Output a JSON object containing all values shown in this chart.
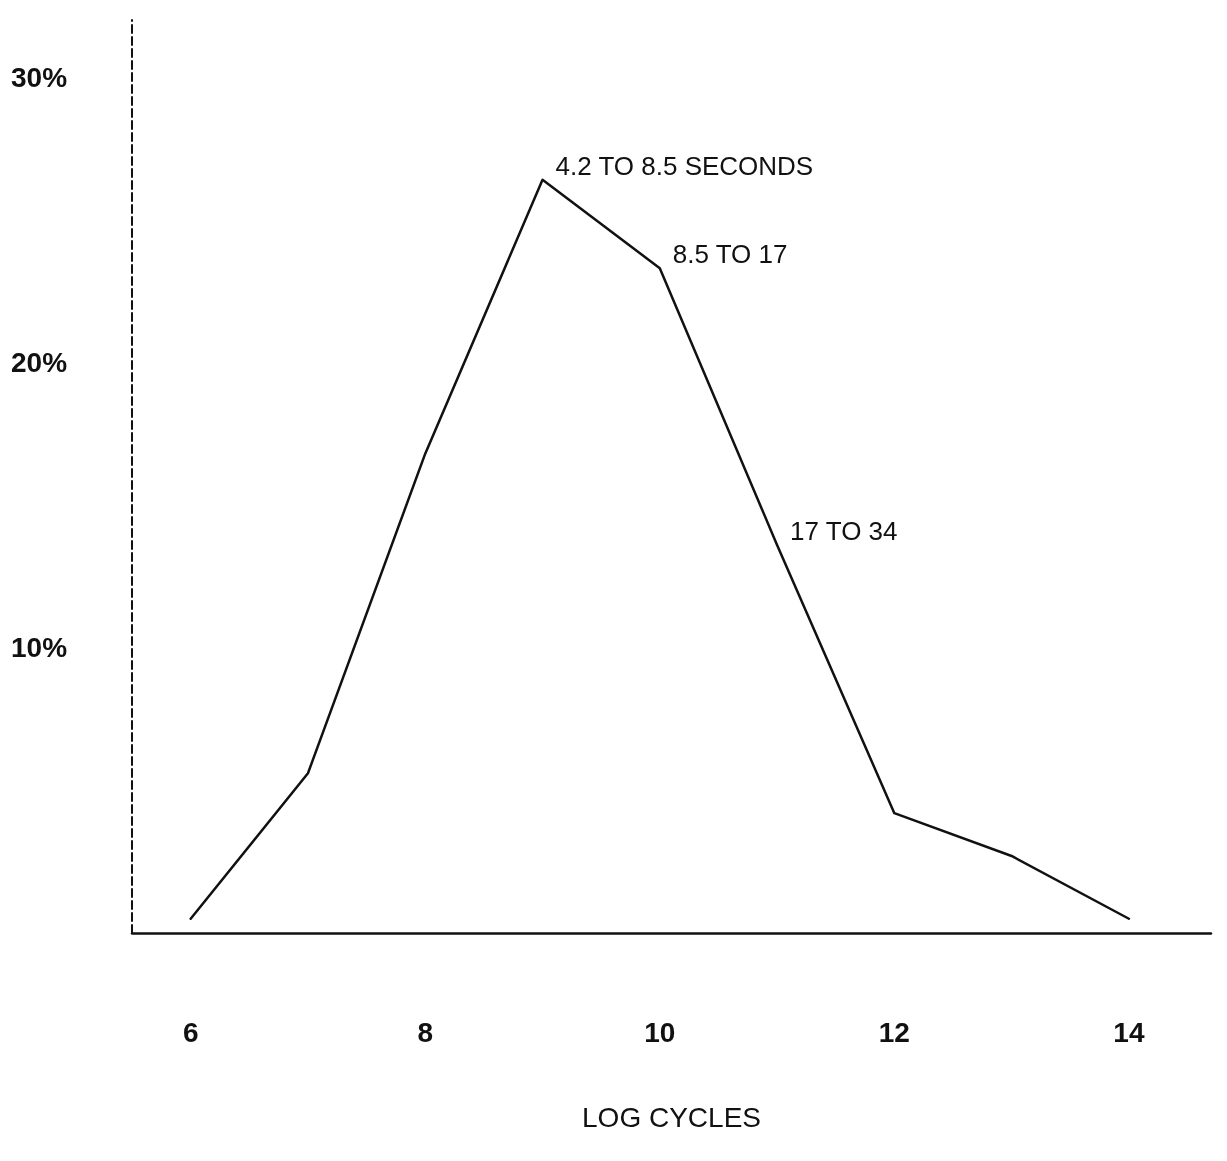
{
  "chart_data": {
    "type": "line",
    "xlabel": "LOG CYCLES",
    "x": [
      6,
      7,
      8,
      9,
      10,
      11,
      12,
      13,
      14
    ],
    "series": [
      {
        "color": "#111111",
        "values": [
          0.5,
          5.6,
          16.8,
          26.4,
          23.3,
          13.6,
          4.2,
          2.7,
          0.5
        ]
      }
    ],
    "xlim": [
      5.5,
      14.7
    ],
    "xticks": [
      6,
      8,
      10,
      12,
      14
    ],
    "ylim": [
      0,
      32
    ],
    "yticks": [
      {
        "value": 10,
        "label": "10%"
      },
      {
        "value": 20,
        "label": "20%"
      },
      {
        "value": 30,
        "label": "30%"
      }
    ],
    "grid": false,
    "marker": "none",
    "line_style": "solid",
    "annotations": [
      {
        "text": "4.2 TO 8.5 SECONDS",
        "x": 9,
        "y": 26.4
      },
      {
        "text": "8.5 TO 17",
        "x": 10,
        "y": 23.3
      },
      {
        "text": "17 TO 34",
        "x": 11,
        "y": 13.6
      }
    ]
  }
}
